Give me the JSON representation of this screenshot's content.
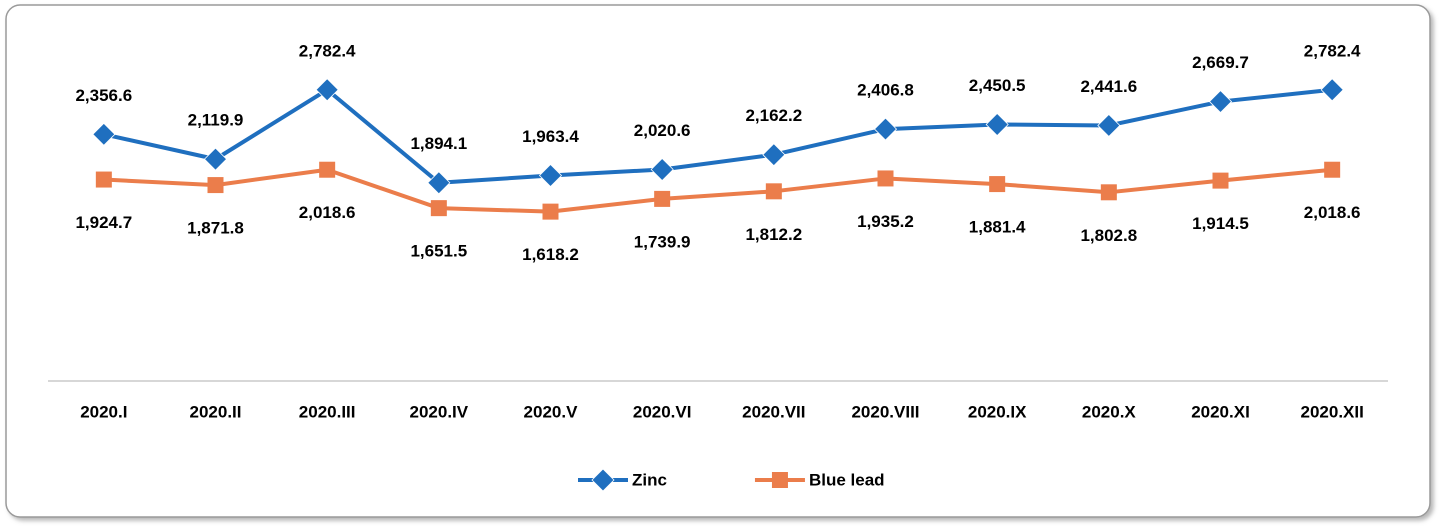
{
  "chart_data": {
    "type": "line",
    "categories": [
      "2020.I",
      "2020.II",
      "2020.III",
      "2020.IV",
      "2020.V",
      "2020.VI",
      "2020.VII",
      "2020.VIII",
      "2020.IX",
      "2020.X",
      "2020.XI",
      "2020.XII"
    ],
    "series": [
      {
        "name": "Zinc",
        "color": "#1f6fbf",
        "marker": "diamond",
        "label_position": "above",
        "values": [
          2356.6,
          2119.9,
          2782.4,
          1894.1,
          1963.4,
          2020.6,
          2162.2,
          2406.8,
          2450.5,
          2441.6,
          2669.7,
          2782.4
        ],
        "value_labels": [
          "2,356.6",
          "2,119.9",
          "2,782.4",
          "1,894.1",
          "1,963.4",
          "2,020.6",
          "2,162.2",
          "2,406.8",
          "2,450.5",
          "2,441.6",
          "2,669.7",
          "2,782.4"
        ]
      },
      {
        "name": "Blue lead",
        "color": "#eb7d4b",
        "marker": "square",
        "label_position": "below",
        "values": [
          1924.7,
          1871.8,
          2018.6,
          1651.5,
          1618.2,
          1739.9,
          1812.2,
          1935.2,
          1881.4,
          1802.8,
          1914.5,
          2018.6
        ],
        "value_labels": [
          "1,924.7",
          "1,871.8",
          "2,018.6",
          "1,651.5",
          "1,618.2",
          "1,739.9",
          "1,812.2",
          "1,935.2",
          "1,881.4",
          "1,802.8",
          "1,914.5",
          "2,018.6"
        ]
      }
    ],
    "ylim": [
      0,
      3000
    ],
    "legend": "bottom",
    "grid": false
  }
}
